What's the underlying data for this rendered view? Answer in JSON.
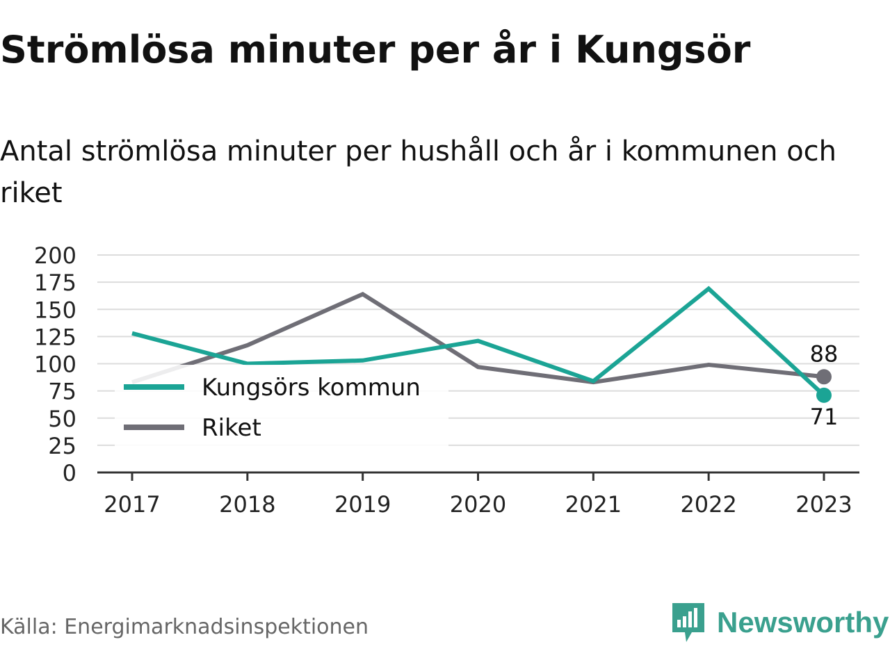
{
  "title": "Strömlösa minuter per år i Kungsör",
  "subtitle": "Antal strömlösa minuter per hushåll och år i kommunen och riket",
  "source": "Källa: Energimarknadsinspektionen",
  "brand": {
    "name": "Newsworthy",
    "logo_icon": "newsworthy-logo-icon",
    "color": "#3aa08e"
  },
  "chart_data": {
    "type": "line",
    "x": [
      "2017",
      "2018",
      "2019",
      "2020",
      "2021",
      "2022",
      "2023"
    ],
    "ylim": [
      0,
      200
    ],
    "yticks": [
      0,
      25,
      50,
      75,
      100,
      125,
      150,
      175,
      200
    ],
    "grid": true,
    "legend_position": "left",
    "series": [
      {
        "name": "Kungsörs kommun",
        "color": "#1ba495",
        "values": [
          128,
          100,
          103,
          121,
          84,
          169,
          71
        ],
        "end_label": "71"
      },
      {
        "name": "Riket",
        "color": "#6f6e76",
        "values": [
          83,
          117,
          164,
          97,
          83,
          99,
          88
        ],
        "end_label": "88"
      }
    ]
  }
}
